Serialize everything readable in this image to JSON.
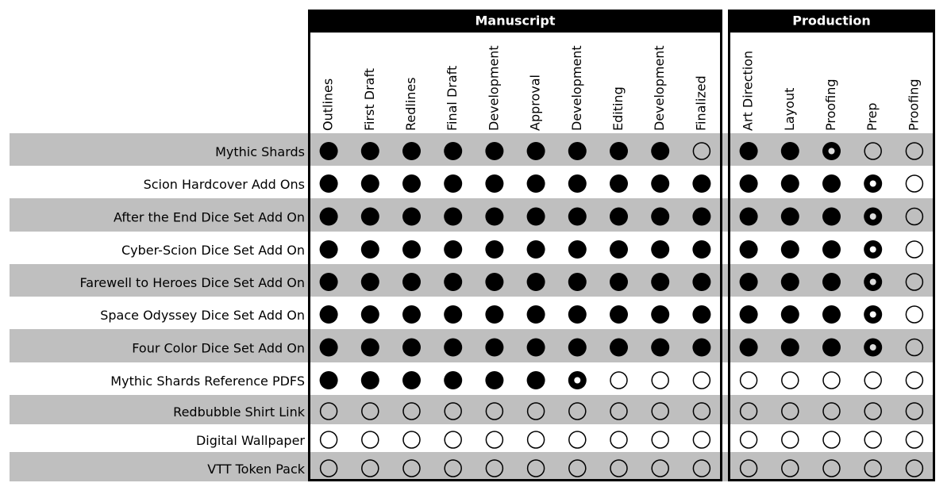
{
  "groups": [
    {
      "title": "Manuscript",
      "columns": [
        "Outlines",
        "First Draft",
        "Redlines",
        "Final Draft",
        "Development",
        "Approval",
        "Development",
        "Editing",
        "Development",
        "Finalized"
      ]
    },
    {
      "title": "Production",
      "columns": [
        "Art Direction",
        "Layout",
        "Proofing",
        "Prep",
        "Proofing"
      ]
    }
  ],
  "rows": [
    {
      "label": "Mythic Shards",
      "status": [
        [
          1,
          1,
          1,
          1,
          1,
          1,
          1,
          1,
          1,
          0
        ],
        [
          1,
          1,
          0.5,
          0,
          0
        ]
      ]
    },
    {
      "label": "Scion Hardcover Add Ons",
      "status": [
        [
          1,
          1,
          1,
          1,
          1,
          1,
          1,
          1,
          1,
          1
        ],
        [
          1,
          1,
          1,
          0.5,
          0
        ]
      ]
    },
    {
      "label": "After the End Dice Set Add On",
      "status": [
        [
          1,
          1,
          1,
          1,
          1,
          1,
          1,
          1,
          1,
          1
        ],
        [
          1,
          1,
          1,
          0.5,
          0
        ]
      ]
    },
    {
      "label": "Cyber-Scion Dice Set Add On",
      "status": [
        [
          1,
          1,
          1,
          1,
          1,
          1,
          1,
          1,
          1,
          1
        ],
        [
          1,
          1,
          1,
          0.5,
          0
        ]
      ]
    },
    {
      "label": "Farewell to Heroes Dice Set Add On",
      "status": [
        [
          1,
          1,
          1,
          1,
          1,
          1,
          1,
          1,
          1,
          1
        ],
        [
          1,
          1,
          1,
          0.5,
          0
        ]
      ]
    },
    {
      "label": "Space Odyssey Dice Set Add On",
      "status": [
        [
          1,
          1,
          1,
          1,
          1,
          1,
          1,
          1,
          1,
          1
        ],
        [
          1,
          1,
          1,
          0.5,
          0
        ]
      ]
    },
    {
      "label": "Four Color Dice Set Add On",
      "status": [
        [
          1,
          1,
          1,
          1,
          1,
          1,
          1,
          1,
          1,
          1
        ],
        [
          1,
          1,
          1,
          0.5,
          0
        ]
      ]
    },
    {
      "label": "Mythic Shards Reference PDFS",
      "status": [
        [
          1,
          1,
          1,
          1,
          1,
          1,
          0.5,
          0,
          0,
          0
        ],
        [
          0,
          0,
          0,
          0,
          0
        ]
      ]
    },
    {
      "label": "Redbubble Shirt Link",
      "status": [
        [
          0,
          0,
          0,
          0,
          0,
          0,
          0,
          0,
          0,
          0
        ],
        [
          0,
          0,
          0,
          0,
          0
        ]
      ]
    },
    {
      "label": "Digital Wallpaper",
      "status": [
        [
          0,
          0,
          0,
          0,
          0,
          0,
          0,
          0,
          0,
          0
        ],
        [
          0,
          0,
          0,
          0,
          0
        ]
      ]
    },
    {
      "label": "VTT Token Pack",
      "status": [
        [
          0,
          0,
          0,
          0,
          0,
          0,
          0,
          0,
          0,
          0
        ],
        [
          0,
          0,
          0,
          0,
          0
        ]
      ]
    }
  ]
}
